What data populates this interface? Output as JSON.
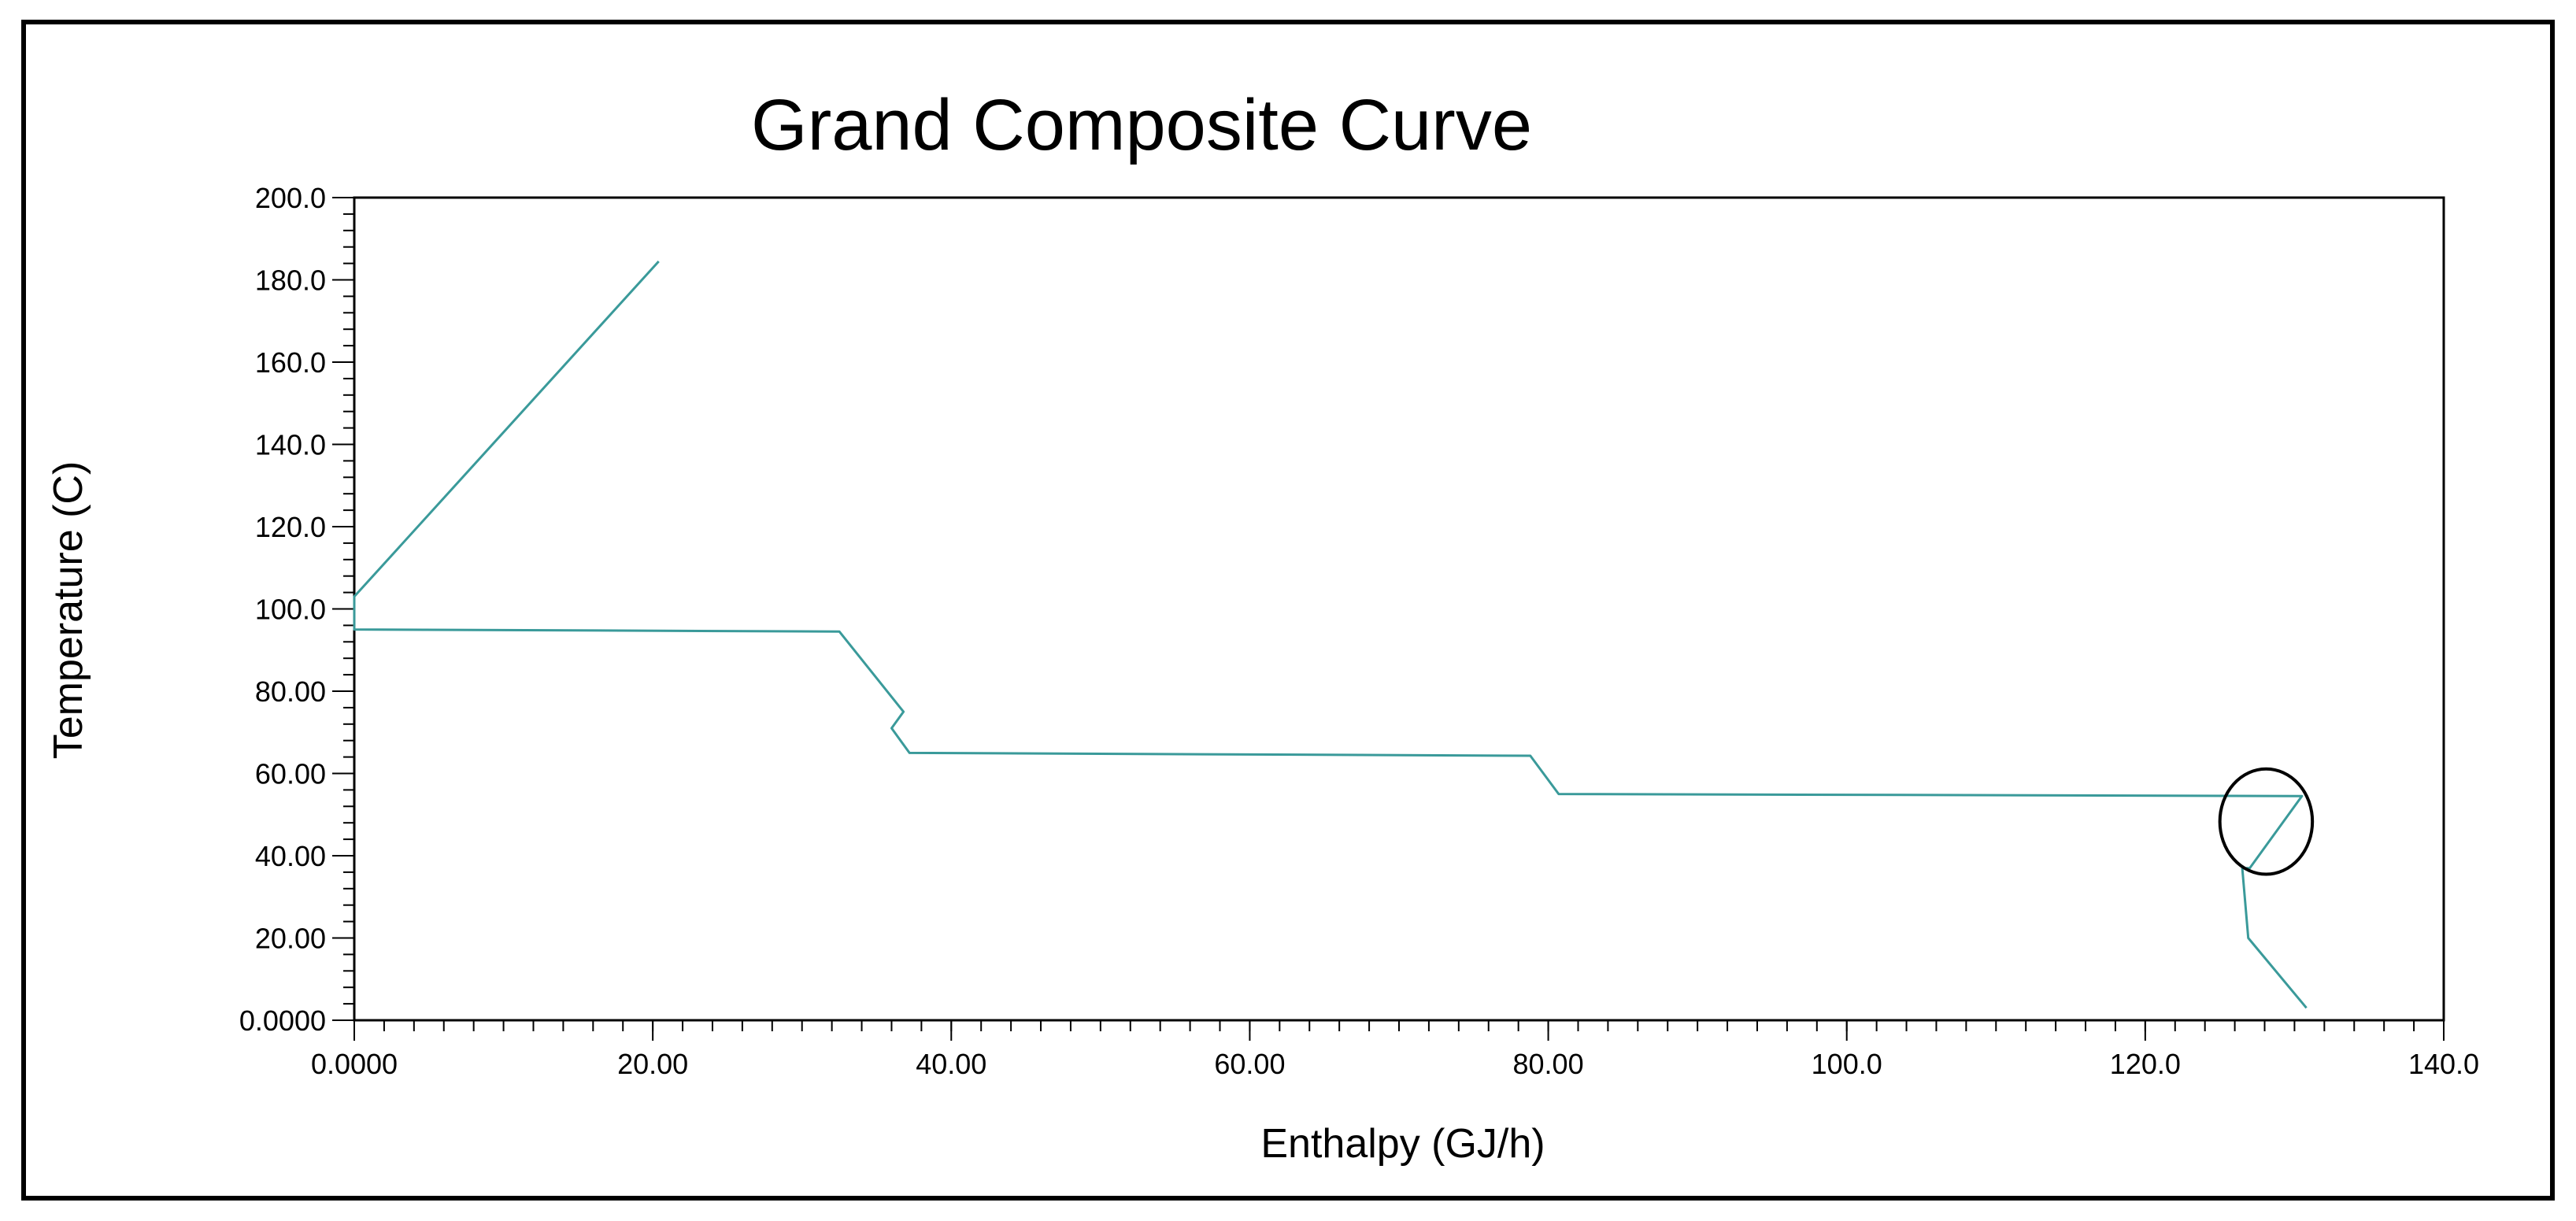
{
  "chart_data": {
    "type": "line",
    "title": "Grand Composite Curve",
    "xlabel": "Enthalpy (GJ/h)",
    "ylabel": "Temperature (C)",
    "xlim": [
      0,
      140
    ],
    "ylim": [
      0,
      200
    ],
    "x_ticks": [
      {
        "value": 0,
        "label": "0.0000"
      },
      {
        "value": 20,
        "label": "20.00"
      },
      {
        "value": 40,
        "label": "40.00"
      },
      {
        "value": 60,
        "label": "60.00"
      },
      {
        "value": 80,
        "label": "80.00"
      },
      {
        "value": 100,
        "label": "100.0"
      },
      {
        "value": 120,
        "label": "120.0"
      },
      {
        "value": 140,
        "label": "140.0"
      }
    ],
    "y_ticks": [
      {
        "value": 0,
        "label": "0.0000"
      },
      {
        "value": 20,
        "label": "20.00"
      },
      {
        "value": 40,
        "label": "40.00"
      },
      {
        "value": 60,
        "label": "60.00"
      },
      {
        "value": 80,
        "label": "80.00"
      },
      {
        "value": 100,
        "label": "100.0"
      },
      {
        "value": 120,
        "label": "120.0"
      },
      {
        "value": 140,
        "label": "140.0"
      },
      {
        "value": 160,
        "label": "160.0"
      },
      {
        "value": 180,
        "label": "180.0"
      },
      {
        "value": 200,
        "label": "200.0"
      }
    ],
    "x_minor_step": 2,
    "y_minor_step": 4,
    "grid": false,
    "legend": "none",
    "series": [
      {
        "color": "#3a9a9a",
        "points": [
          [
            20.4,
            184.5
          ],
          [
            0.0,
            103.0
          ],
          [
            0.0,
            95.0
          ],
          [
            32.5,
            94.5
          ],
          [
            36.8,
            75.0
          ],
          [
            36.0,
            71.0
          ],
          [
            37.2,
            65.0
          ],
          [
            78.8,
            64.3
          ],
          [
            80.7,
            55.0
          ],
          [
            130.5,
            54.5
          ],
          [
            127.0,
            37.0
          ],
          [
            126.5,
            37.0
          ],
          [
            126.9,
            20.0
          ],
          [
            130.8,
            3.0
          ]
        ]
      }
    ],
    "annotations": [
      {
        "type": "ellipse",
        "center": [
          128.1,
          48.3
        ],
        "radius": [
          3.1,
          12.8
        ],
        "color": "#000000"
      }
    ]
  }
}
